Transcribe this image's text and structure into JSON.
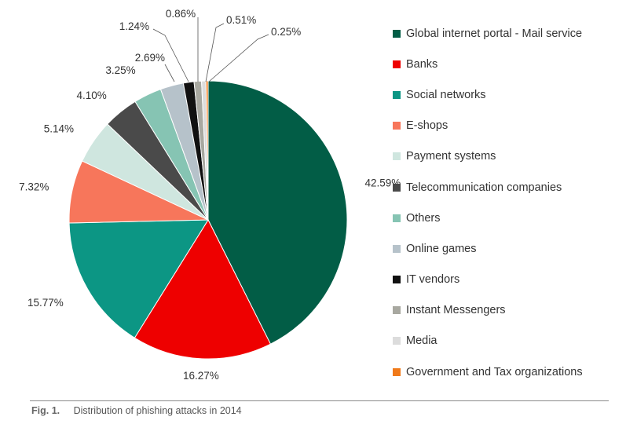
{
  "chart_data": {
    "type": "pie",
    "slices": [
      {
        "label": "Global internet portal - Mail service",
        "value": 42.59,
        "value_label": "42.59%",
        "color": "#025d46"
      },
      {
        "label": "Banks",
        "value": 16.27,
        "value_label": "16.27%",
        "color": "#ee0000"
      },
      {
        "label": "Social networks",
        "value": 15.77,
        "value_label": "15.77%",
        "color": "#0c9684"
      },
      {
        "label": "E-shops",
        "value": 7.32,
        "value_label": "7.32%",
        "color": "#f7765b"
      },
      {
        "label": "Payment systems",
        "value": 5.14,
        "value_label": "5.14%",
        "color": "#cfe6df"
      },
      {
        "label": "Telecommunication companies",
        "value": 4.1,
        "value_label": "4.10%",
        "color": "#4a4a4a"
      },
      {
        "label": "Others",
        "value": 3.25,
        "value_label": "3.25%",
        "color": "#86c4b3"
      },
      {
        "label": "Online games",
        "value": 2.69,
        "value_label": "2.69%",
        "color": "#b6c2ca"
      },
      {
        "label": "IT vendors",
        "value": 1.24,
        "value_label": "1.24%",
        "color": "#111111"
      },
      {
        "label": "Instant Messengers",
        "value": 0.86,
        "value_label": "0.86%",
        "color": "#a8a8a0"
      },
      {
        "label": "Media",
        "value": 0.51,
        "value_label": "0.51%",
        "color": "#dcdcdc"
      },
      {
        "label": "Government and Tax organizations",
        "value": 0.25,
        "value_label": "0.25%",
        "color": "#f07a1a"
      }
    ],
    "legend_position": "right"
  },
  "caption": {
    "number": "Fig. 1.",
    "text": "Distribution of phishing attacks in 2014"
  }
}
